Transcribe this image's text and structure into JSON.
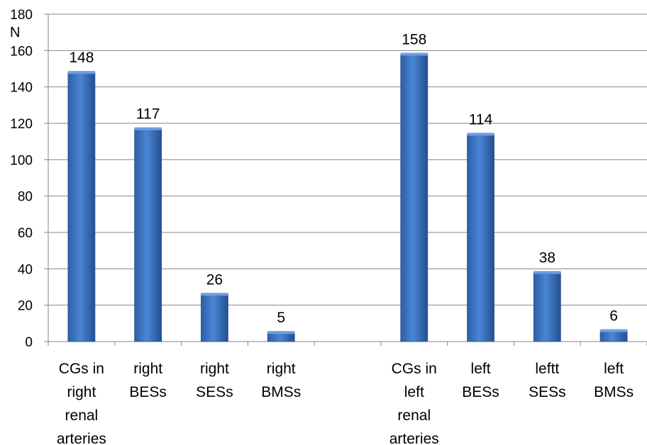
{
  "chart_data": {
    "type": "bar",
    "y_unit_label": "N",
    "ylim": [
      0,
      180
    ],
    "y_ticks": [
      0,
      20,
      40,
      60,
      80,
      100,
      120,
      140,
      160,
      180
    ],
    "grid": true,
    "legend": "none",
    "bar_color": "#3f78c6",
    "categories": [
      [
        "CGs in",
        "right",
        "renal",
        "arteries"
      ],
      [
        "right",
        "BESs"
      ],
      [
        "right",
        "SESs"
      ],
      [
        "right",
        "BMSs"
      ],
      [],
      [
        "CGs in",
        "left",
        "renal",
        "arteries"
      ],
      [
        "left",
        "BESs"
      ],
      [
        "leftt",
        "SESs"
      ],
      [
        "left",
        "BMSs"
      ]
    ],
    "values": [
      148,
      117,
      26,
      5,
      null,
      158,
      114,
      38,
      6
    ]
  }
}
